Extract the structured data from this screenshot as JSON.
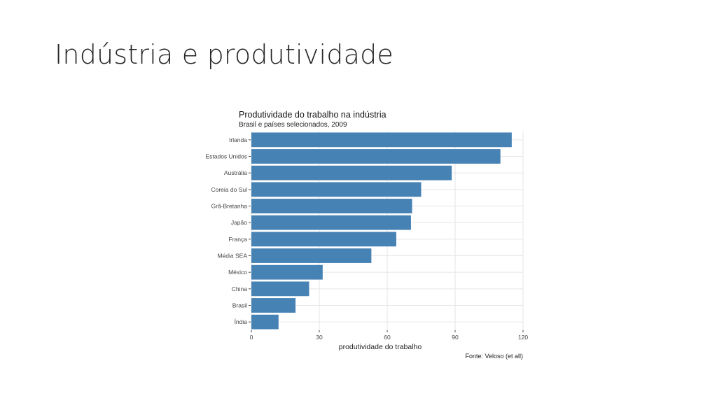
{
  "slide": {
    "title": "Indústria e produtividade"
  },
  "chart_data": {
    "type": "bar",
    "orientation": "horizontal",
    "title": "Produtividade do trabalho na indústria",
    "subtitle": "Brasil e países selecionados, 2009",
    "xlabel": "produtividade do trabalho",
    "ylabel": "",
    "caption": "Fonte: Veloso (et all)",
    "xlim": [
      0,
      120
    ],
    "xticks": [
      0,
      30,
      60,
      90,
      120
    ],
    "grid": true,
    "bar_color": "#4682b4",
    "grid_color": "#e6e6e6",
    "categories": [
      "Irlanda",
      "Estados Unidos",
      "Austrália",
      "Coreia do Sul",
      "Grã-Bretanha",
      "Japão",
      "França",
      "Média SEA",
      "México",
      "China",
      "Brasil",
      "Índia"
    ],
    "values": [
      115,
      110,
      88.5,
      75,
      71,
      70.5,
      64,
      53,
      31.5,
      25.5,
      19.5,
      12
    ]
  }
}
